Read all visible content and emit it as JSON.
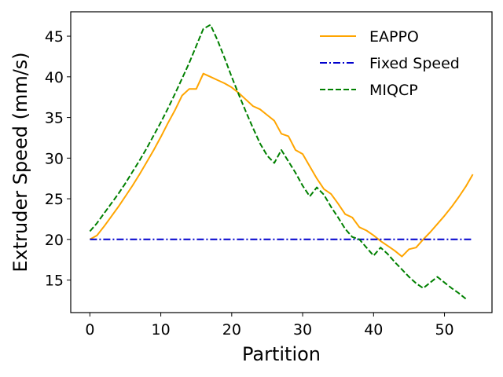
{
  "chart_data": {
    "type": "line",
    "xlabel": "Partition",
    "ylabel": "Extruder Speed (mm/s)",
    "xlim": [
      -2.7,
      56.7
    ],
    "ylim": [
      11.0,
      48.0
    ],
    "xticks": [
      0,
      10,
      20,
      30,
      40,
      50
    ],
    "yticks": [
      15,
      20,
      25,
      30,
      35,
      40,
      45
    ],
    "legend": "top-right",
    "grid": false,
    "series": [
      {
        "name": "EAPPO",
        "color": "#FFA500",
        "style": "solid",
        "x": [
          0,
          1,
          2,
          3,
          4,
          5,
          6,
          7,
          8,
          9,
          10,
          11,
          12,
          13,
          14,
          15,
          16,
          17,
          18,
          19,
          20,
          21,
          22,
          23,
          24,
          25,
          26,
          27,
          28,
          29,
          30,
          31,
          32,
          33,
          34,
          35,
          36,
          37,
          38,
          39,
          40,
          41,
          42,
          43,
          44,
          45,
          46,
          47,
          48,
          49,
          50,
          51,
          52,
          53,
          54
        ],
        "values": [
          20.0,
          20.5,
          21.6,
          22.8,
          24.0,
          25.3,
          26.6,
          28.0,
          29.5,
          31.0,
          32.6,
          34.3,
          35.9,
          37.7,
          38.5,
          38.5,
          40.4,
          40.0,
          39.6,
          39.2,
          38.7,
          38.0,
          37.2,
          36.4,
          36.0,
          35.3,
          34.6,
          33.0,
          32.7,
          31.0,
          30.5,
          29.0,
          27.5,
          26.2,
          25.6,
          24.4,
          23.1,
          22.7,
          21.5,
          21.1,
          20.5,
          19.8,
          19.2,
          18.6,
          17.9,
          18.8,
          19.0,
          20.0,
          20.9,
          21.9,
          22.9,
          24.0,
          25.2,
          26.5,
          28.0
        ]
      },
      {
        "name": "Fixed Speed",
        "color": "#0000CD",
        "style": "dashdot",
        "x": [
          0,
          54
        ],
        "values": [
          20.0,
          20.0
        ]
      },
      {
        "name": "MIQCP",
        "color": "#008000",
        "style": "dashed",
        "x": [
          0,
          1,
          2,
          3,
          4,
          5,
          6,
          7,
          8,
          9,
          10,
          11,
          12,
          13,
          14,
          15,
          16,
          17,
          18,
          19,
          20,
          21,
          22,
          23,
          24,
          25,
          26,
          27,
          28,
          29,
          30,
          31,
          32,
          33,
          34,
          35,
          36,
          37,
          38,
          39,
          40,
          41,
          42,
          43,
          44,
          45,
          46,
          47,
          48,
          49,
          50,
          51,
          52,
          53
        ],
        "values": [
          21.0,
          22.0,
          23.2,
          24.4,
          25.6,
          26.9,
          28.3,
          29.7,
          31.2,
          32.8,
          34.4,
          36.1,
          37.9,
          39.8,
          41.7,
          43.8,
          45.9,
          46.4,
          44.5,
          42.3,
          40.0,
          37.8,
          35.7,
          33.7,
          31.8,
          30.3,
          29.4,
          31.0,
          29.6,
          28.2,
          26.6,
          25.3,
          26.4,
          25.5,
          24.0,
          22.7,
          21.3,
          20.3,
          20.0,
          19.0,
          18.0,
          19.0,
          18.2,
          17.2,
          16.3,
          15.4,
          14.6,
          14.0,
          14.7,
          15.4,
          14.7,
          14.0,
          13.4,
          12.7
        ]
      }
    ]
  }
}
